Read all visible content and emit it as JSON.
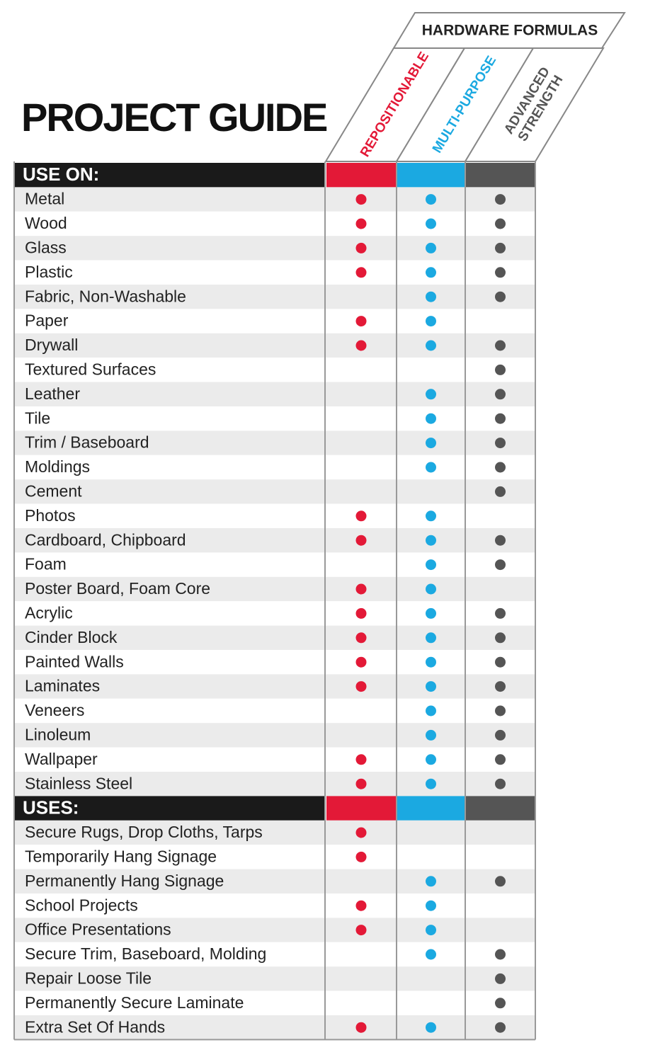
{
  "title": "PROJECT GUIDE",
  "group_header": "HARDWARE FORMULAS",
  "columns": [
    {
      "lines": [
        "REPOSITIONABLE"
      ],
      "color": "#e31937"
    },
    {
      "lines": [
        "MULTI-PURPOSE"
      ],
      "color": "#1ba9e1"
    },
    {
      "lines": [
        "ADVANCED",
        "STRENGTH"
      ],
      "color": "#555555"
    }
  ],
  "sections": [
    {
      "header": "USE ON:",
      "rows": [
        {
          "label": "Metal",
          "marks": [
            true,
            true,
            true
          ]
        },
        {
          "label": "Wood",
          "marks": [
            true,
            true,
            true
          ]
        },
        {
          "label": "Glass",
          "marks": [
            true,
            true,
            true
          ]
        },
        {
          "label": "Plastic",
          "marks": [
            true,
            true,
            true
          ]
        },
        {
          "label": "Fabric, Non-Washable",
          "marks": [
            false,
            true,
            true
          ]
        },
        {
          "label": "Paper",
          "marks": [
            true,
            true,
            false
          ]
        },
        {
          "label": "Drywall",
          "marks": [
            true,
            true,
            true
          ]
        },
        {
          "label": "Textured Surfaces",
          "marks": [
            false,
            false,
            true
          ]
        },
        {
          "label": "Leather",
          "marks": [
            false,
            true,
            true
          ]
        },
        {
          "label": "Tile",
          "marks": [
            false,
            true,
            true
          ]
        },
        {
          "label": "Trim / Baseboard",
          "marks": [
            false,
            true,
            true
          ]
        },
        {
          "label": "Moldings",
          "marks": [
            false,
            true,
            true
          ]
        },
        {
          "label": "Cement",
          "marks": [
            false,
            false,
            true
          ]
        },
        {
          "label": "Photos",
          "marks": [
            true,
            true,
            false
          ]
        },
        {
          "label": "Cardboard, Chipboard",
          "marks": [
            true,
            true,
            true
          ]
        },
        {
          "label": "Foam",
          "marks": [
            false,
            true,
            true
          ]
        },
        {
          "label": "Poster Board, Foam Core",
          "marks": [
            true,
            true,
            false
          ]
        },
        {
          "label": "Acrylic",
          "marks": [
            true,
            true,
            true
          ]
        },
        {
          "label": "Cinder Block",
          "marks": [
            true,
            true,
            true
          ]
        },
        {
          "label": "Painted Walls",
          "marks": [
            true,
            true,
            true
          ]
        },
        {
          "label": "Laminates",
          "marks": [
            true,
            true,
            true
          ]
        },
        {
          "label": "Veneers",
          "marks": [
            false,
            true,
            true
          ]
        },
        {
          "label": "Linoleum",
          "marks": [
            false,
            true,
            true
          ]
        },
        {
          "label": "Wallpaper",
          "marks": [
            true,
            true,
            true
          ]
        },
        {
          "label": "Stainless Steel",
          "marks": [
            true,
            true,
            true
          ]
        }
      ]
    },
    {
      "header": "USES:",
      "rows": [
        {
          "label": "Secure Rugs, Drop Cloths, Tarps",
          "marks": [
            true,
            false,
            false
          ]
        },
        {
          "label": "Temporarily Hang Signage",
          "marks": [
            true,
            false,
            false
          ]
        },
        {
          "label": "Permanently Hang Signage",
          "marks": [
            false,
            true,
            true
          ]
        },
        {
          "label": "School Projects",
          "marks": [
            true,
            true,
            false
          ]
        },
        {
          "label": "Office Presentations",
          "marks": [
            true,
            true,
            false
          ]
        },
        {
          "label": "Secure Trim, Baseboard, Molding",
          "marks": [
            false,
            true,
            true
          ]
        },
        {
          "label": "Repair Loose Tile",
          "marks": [
            false,
            false,
            true
          ]
        },
        {
          "label": "Permanently Secure Laminate",
          "marks": [
            false,
            false,
            true
          ]
        },
        {
          "label": "Extra Set Of Hands",
          "marks": [
            true,
            true,
            true
          ]
        }
      ]
    }
  ]
}
